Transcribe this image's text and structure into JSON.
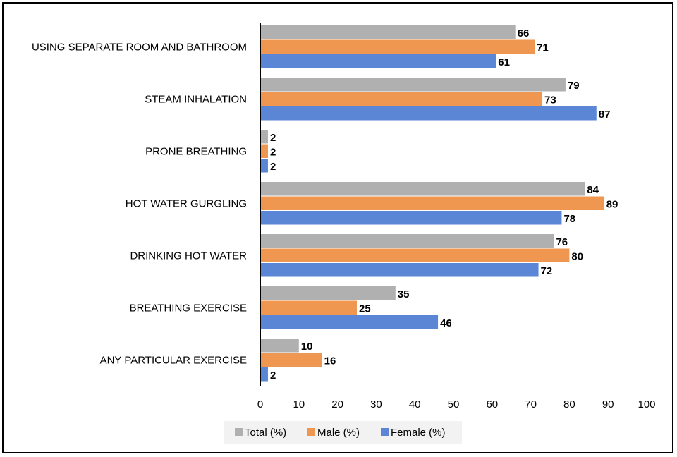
{
  "chart_data": {
    "type": "bar",
    "orientation": "horizontal",
    "title": "",
    "xlabel": "",
    "ylabel": "",
    "xlim": [
      0,
      100
    ],
    "x_ticks": [
      0,
      10,
      20,
      30,
      40,
      50,
      60,
      70,
      80,
      90,
      100
    ],
    "grid": false,
    "legend_position": "bottom",
    "categories": [
      "USING SEPARATE ROOM AND BATHROOM",
      "STEAM INHALATION",
      "PRONE BREATHING",
      "HOT WATER GURGLING",
      "DRINKING HOT WATER",
      "BREATHING EXERCISE",
      "ANY PARTICULAR EXERCISE"
    ],
    "series": [
      {
        "name": "Total (%)",
        "color": "#b0b0b0",
        "values": [
          66,
          79,
          2,
          84,
          76,
          35,
          10
        ]
      },
      {
        "name": "Male (%)",
        "color": "#ef9650",
        "values": [
          71,
          73,
          2,
          89,
          80,
          25,
          16
        ]
      },
      {
        "name": "Female (%)",
        "color": "#5b86d6",
        "values": [
          61,
          87,
          2,
          78,
          72,
          46,
          2
        ]
      }
    ]
  }
}
